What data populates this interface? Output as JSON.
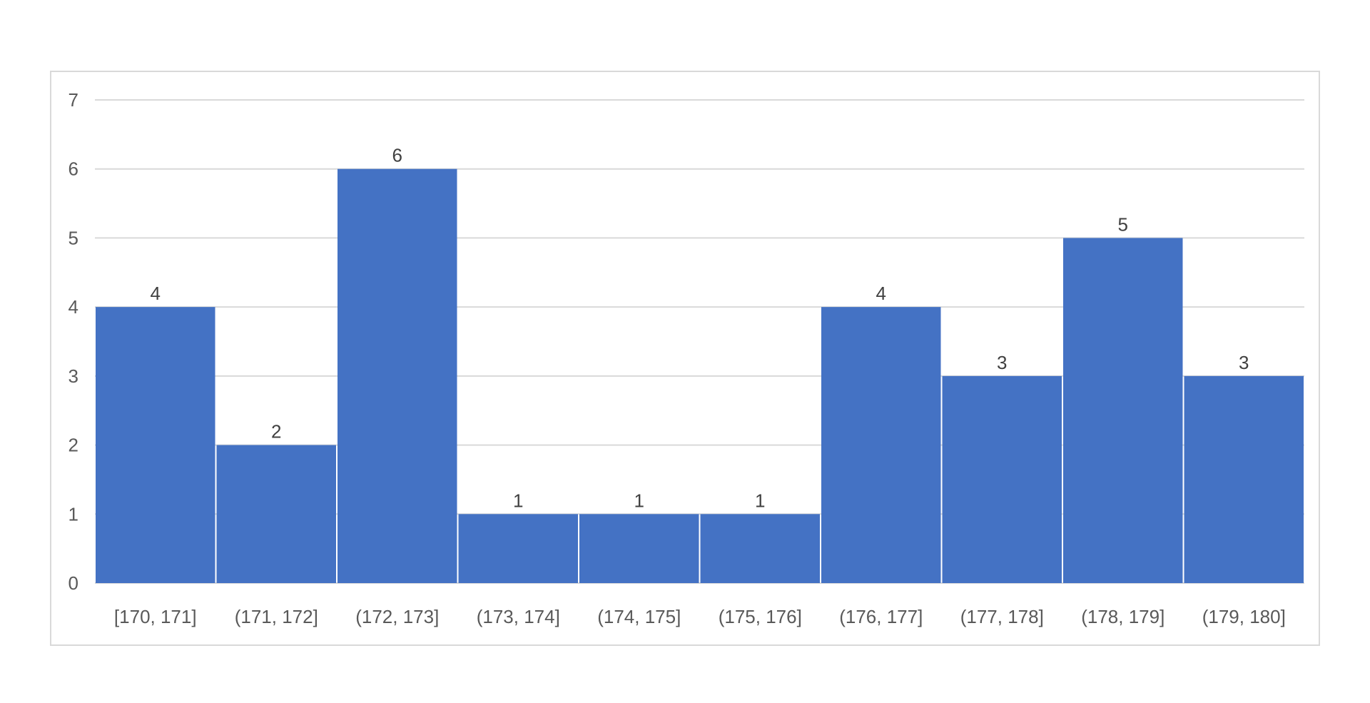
{
  "chart_data": {
    "type": "bar",
    "title": "",
    "xlabel": "",
    "ylabel": "",
    "categories": [
      "[170, 171]",
      "(171, 172]",
      "(172, 173]",
      "(173, 174]",
      "(174, 175]",
      "(175, 176]",
      "(176, 177]",
      "(177, 178]",
      "(178, 179]",
      "(179, 180]"
    ],
    "values": [
      4,
      2,
      6,
      1,
      1,
      1,
      4,
      3,
      5,
      3
    ],
    "data_labels": [
      "4",
      "2",
      "6",
      "1",
      "1",
      "1",
      "4",
      "3",
      "5",
      "3"
    ],
    "ylim": [
      0,
      7
    ],
    "y_ticks": [
      "0",
      "1",
      "2",
      "3",
      "4",
      "5",
      "6",
      "7"
    ],
    "grid": true,
    "legend": "none",
    "bar_color": "#4472c4",
    "grid_color": "#d9d9d9"
  }
}
